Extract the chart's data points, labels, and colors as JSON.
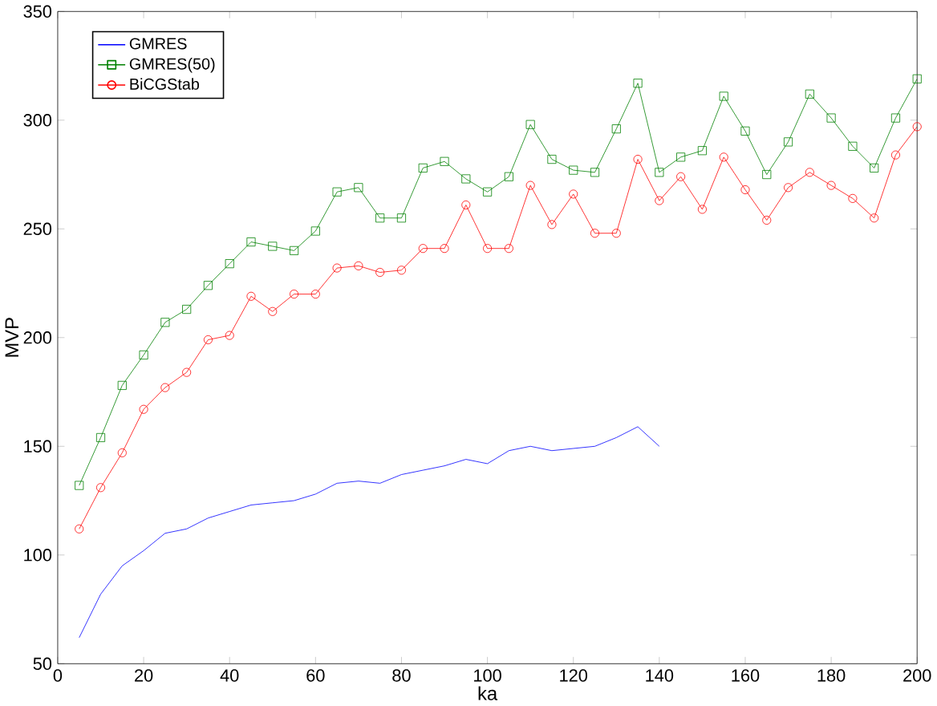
{
  "chart_data": {
    "type": "line",
    "xlabel": "ka",
    "ylabel": "MVP",
    "xlim": [
      0,
      200
    ],
    "ylim": [
      50,
      350
    ],
    "xticks": [
      0,
      20,
      40,
      60,
      80,
      100,
      120,
      140,
      160,
      180,
      200
    ],
    "yticks": [
      50,
      100,
      150,
      200,
      250,
      300,
      350
    ],
    "grid": false,
    "legend": "top left",
    "series": [
      {
        "name": "GMRES",
        "color": "#0000ff",
        "marker": "none",
        "x": [
          5,
          10,
          15,
          20,
          25,
          30,
          35,
          40,
          45,
          50,
          55,
          60,
          65,
          70,
          75,
          80,
          85,
          90,
          95,
          100,
          105,
          110,
          115,
          120,
          125,
          130,
          135,
          140
        ],
        "values": [
          62,
          82,
          95,
          102,
          110,
          112,
          117,
          120,
          123,
          124,
          125,
          128,
          133,
          134,
          133,
          137,
          139,
          141,
          144,
          142,
          148,
          150,
          148,
          149,
          150,
          154,
          159,
          150
        ]
      },
      {
        "name": "GMRES(50)",
        "color": "#008000",
        "marker": "square",
        "x": [
          5,
          10,
          15,
          20,
          25,
          30,
          35,
          40,
          45,
          50,
          55,
          60,
          65,
          70,
          75,
          80,
          85,
          90,
          95,
          100,
          105,
          110,
          115,
          120,
          125,
          130,
          135,
          140,
          145,
          150,
          155,
          160,
          165,
          170,
          175,
          180,
          185,
          190,
          195,
          200
        ],
        "values": [
          132,
          154,
          178,
          192,
          207,
          213,
          224,
          234,
          244,
          242,
          240,
          249,
          267,
          269,
          255,
          255,
          278,
          281,
          273,
          267,
          274,
          298,
          282,
          277,
          276,
          296,
          317,
          276,
          283,
          286,
          311,
          295,
          275,
          290,
          312,
          301,
          288,
          278,
          301,
          319
        ]
      },
      {
        "name": "BiCGStab",
        "color": "#ff0000",
        "marker": "circle",
        "x": [
          5,
          10,
          15,
          20,
          25,
          30,
          35,
          40,
          45,
          50,
          55,
          60,
          65,
          70,
          75,
          80,
          85,
          90,
          95,
          100,
          105,
          110,
          115,
          120,
          125,
          130,
          135,
          140,
          145,
          150,
          155,
          160,
          165,
          170,
          175,
          180,
          185,
          190,
          195,
          200
        ],
        "values": [
          112,
          131,
          147,
          167,
          177,
          184,
          199,
          201,
          219,
          212,
          220,
          220,
          232,
          233,
          230,
          231,
          241,
          241,
          261,
          241,
          241,
          270,
          252,
          266,
          248,
          248,
          282,
          263,
          274,
          259,
          283,
          268,
          254,
          269,
          276,
          270,
          264,
          255,
          284,
          297
        ]
      }
    ]
  }
}
